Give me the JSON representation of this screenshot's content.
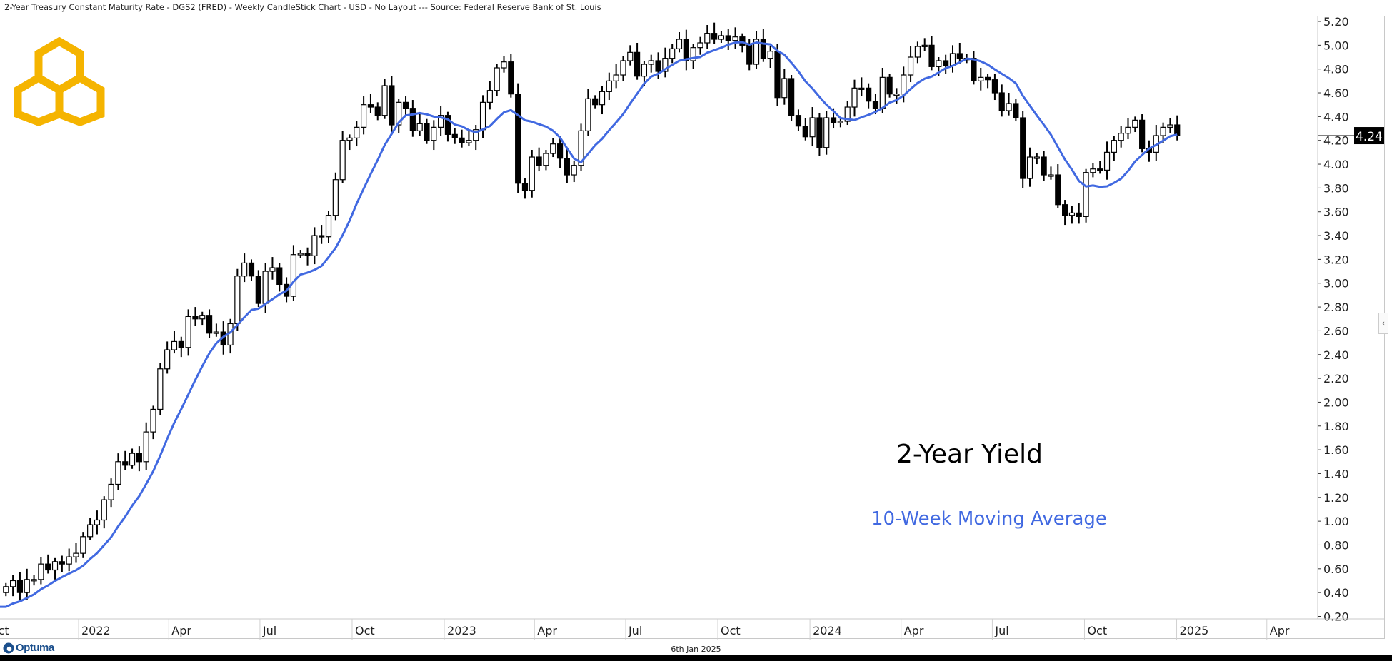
{
  "title": "2-Year Treasury Constant Maturity Rate - DGS2 (FRED) - Weekly CandleStick Chart - USD - No Layout --- Source: Federal Reserve Bank of St. Louis",
  "footer": {
    "date": "6th Jan 2025",
    "brand": "Optuma"
  },
  "collapse_icon": "chevron-left-icon",
  "colors": {
    "ma": "#4169e1",
    "logo": "#f5b400",
    "candle": "#000000"
  },
  "chart_data": {
    "type": "candlestick",
    "annotations": [
      "2-Year Yield",
      "10-Week Moving Average"
    ],
    "last_value_label": "4.24",
    "ylim": [
      0.2,
      5.2
    ],
    "y_ticks": [
      "5.20",
      "5.00",
      "4.80",
      "4.60",
      "4.40",
      "4.20",
      "4.00",
      "3.80",
      "3.60",
      "3.40",
      "3.20",
      "3.00",
      "2.80",
      "2.60",
      "2.40",
      "2.20",
      "2.00",
      "1.80",
      "1.60",
      "1.40",
      "1.20",
      "1.00",
      "0.80",
      "0.60",
      "0.40",
      "0.20"
    ],
    "x_ticks": [
      {
        "label": "Oct",
        "date": "2021-10-01"
      },
      {
        "label": "2022",
        "date": "2022-01-01"
      },
      {
        "label": "Apr",
        "date": "2022-04-01"
      },
      {
        "label": "Jul",
        "date": "2022-07-01"
      },
      {
        "label": "Oct",
        "date": "2022-10-01"
      },
      {
        "label": "2023",
        "date": "2023-01-01"
      },
      {
        "label": "Apr",
        "date": "2023-04-01"
      },
      {
        "label": "Jul",
        "date": "2023-07-01"
      },
      {
        "label": "Oct",
        "date": "2023-10-01"
      },
      {
        "label": "2024",
        "date": "2024-01-01"
      },
      {
        "label": "Apr",
        "date": "2024-04-01"
      },
      {
        "label": "Jul",
        "date": "2024-07-01"
      },
      {
        "label": "Oct",
        "date": "2024-10-01"
      },
      {
        "label": "2025",
        "date": "2025-01-01"
      },
      {
        "label": "Apr",
        "date": "2025-04-01"
      }
    ],
    "first_week": "2021-10-18",
    "ma_period": 10,
    "prior_closes": [
      0.22,
      0.22,
      0.22,
      0.21,
      0.21,
      0.27,
      0.28,
      0.32,
      0.4
    ],
    "weekly_close": [
      0.45,
      0.5,
      0.4,
      0.51,
      0.51,
      0.64,
      0.59,
      0.66,
      0.64,
      0.7,
      0.73,
      0.87,
      0.97,
      1.01,
      1.18,
      1.31,
      1.5,
      1.47,
      1.57,
      1.5,
      1.75,
      1.94,
      2.28,
      2.44,
      2.51,
      2.46,
      2.72,
      2.7,
      2.73,
      2.58,
      2.59,
      2.48,
      2.66,
      3.06,
      3.17,
      3.06,
      2.83,
      3.1,
      3.13,
      2.99,
      2.89,
      3.24,
      3.25,
      3.23,
      3.4,
      3.39,
      3.57,
      3.87,
      4.2,
      4.22,
      4.31,
      4.5,
      4.48,
      4.41,
      4.66,
      4.33,
      4.52,
      4.47,
      4.28,
      4.34,
      4.2,
      4.31,
      4.41,
      4.25,
      4.22,
      4.18,
      4.2,
      4.29,
      4.52,
      4.62,
      4.81,
      4.86,
      4.59,
      3.84,
      3.78,
      4.06,
      3.99,
      4.09,
      4.17,
      4.05,
      3.91,
      3.99,
      4.28,
      4.55,
      4.5,
      4.61,
      4.7,
      4.75,
      4.87,
      4.94,
      4.74,
      4.84,
      4.87,
      4.78,
      4.89,
      4.97,
      5.05,
      4.87,
      4.98,
      5.02,
      5.1,
      5.05,
      5.08,
      5.04,
      5.07,
      5.0,
      4.84,
      5.05,
      4.89,
      4.95,
      4.56,
      4.72,
      4.41,
      4.32,
      4.23,
      4.39,
      4.14,
      4.39,
      4.35,
      4.36,
      4.48,
      4.64,
      4.64,
      4.53,
      4.47,
      4.73,
      4.59,
      4.59,
      4.75,
      4.9,
      4.99,
      5.0,
      4.82,
      4.87,
      4.83,
      4.93,
      4.89,
      4.89,
      4.7,
      4.73,
      4.71,
      4.6,
      4.45,
      4.51,
      4.39,
      3.88,
      4.06,
      4.06,
      3.91,
      3.91,
      3.66,
      3.57,
      3.59,
      3.56,
      3.93,
      3.96,
      3.95,
      4.1,
      4.2,
      4.26,
      4.31,
      4.37,
      4.13,
      4.1,
      4.24,
      4.31,
      4.33,
      4.24
    ]
  }
}
